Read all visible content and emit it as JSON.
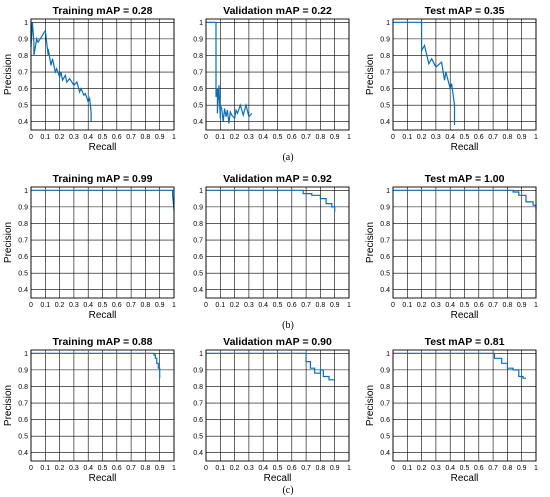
{
  "figure": {
    "row_labels": [
      "(a)",
      "(b)",
      "(c)"
    ],
    "line_color": "#0c6db3"
  },
  "chart_data": [
    {
      "type": "line",
      "title": "Training mAP = 0.28",
      "xlabel": "Recall",
      "ylabel": "Precision",
      "xlim": [
        0,
        1
      ],
      "ylim": [
        0.35,
        1.02
      ],
      "grid": true,
      "x_ticks": [
        "0",
        "0.1",
        "0.2",
        "0.3",
        "0.4",
        "0.5",
        "0.6",
        "0.7",
        "0.8",
        "0.9",
        "1"
      ],
      "y_ticks": [
        "0.4",
        "0.5",
        "0.6",
        "0.7",
        "0.8",
        "0.9",
        "1"
      ],
      "series": [
        {
          "x": [
            0,
            0,
            0.01,
            0.02,
            0.02,
            0.04,
            0.05,
            0.1,
            0.12,
            0.12,
            0.14,
            0.15,
            0.17,
            0.18,
            0.2,
            0.21,
            0.22,
            0.24,
            0.25,
            0.27,
            0.3,
            0.32,
            0.34,
            0.35,
            0.37,
            0.38,
            0.4,
            0.41,
            0.42,
            0.42
          ],
          "y": [
            1.0,
            0.85,
            1.0,
            0.88,
            0.8,
            0.9,
            0.88,
            0.95,
            0.8,
            0.84,
            0.74,
            0.78,
            0.7,
            0.72,
            0.67,
            0.7,
            0.65,
            0.68,
            0.64,
            0.66,
            0.62,
            0.64,
            0.58,
            0.6,
            0.56,
            0.57,
            0.52,
            0.54,
            0.46,
            0.4
          ]
        }
      ]
    },
    {
      "type": "line",
      "title": "Validation mAP = 0.22",
      "xlabel": "",
      "ylabel": "",
      "xlim": [
        0,
        1
      ],
      "ylim": [
        0.35,
        1.02
      ],
      "grid": true,
      "x_ticks": [
        "0",
        "0.1",
        "0.2",
        "0.3",
        "0.4",
        "0.5",
        "0.6",
        "0.7",
        "0.8",
        "0.9",
        "1"
      ],
      "y_ticks": [
        "0.4",
        "0.5",
        "0.6",
        "0.7",
        "0.8",
        "0.9",
        "1"
      ],
      "series": [
        {
          "x": [
            0,
            0.07,
            0.07,
            0.08,
            0.08,
            0.09,
            0.1,
            0.1,
            0.11,
            0.12,
            0.13,
            0.14,
            0.15,
            0.16,
            0.17,
            0.18,
            0.2,
            0.21,
            0.22,
            0.24,
            0.25,
            0.26,
            0.28,
            0.3,
            0.32
          ],
          "y": [
            1.0,
            1.0,
            0.55,
            0.6,
            0.45,
            0.62,
            0.42,
            0.5,
            0.48,
            0.4,
            0.48,
            0.43,
            0.47,
            0.39,
            0.46,
            0.44,
            0.42,
            0.47,
            0.45,
            0.5,
            0.47,
            0.44,
            0.5,
            0.43,
            0.45
          ]
        }
      ]
    },
    {
      "type": "line",
      "title": "Test mAP = 0.35",
      "xlabel": "Recall",
      "ylabel": "Precision",
      "xlim": [
        0,
        1
      ],
      "ylim": [
        0.35,
        1.02
      ],
      "grid": true,
      "x_ticks": [
        "0",
        "0.1",
        "0.2",
        "0.3",
        "0.4",
        "0.5",
        "0.6",
        "0.7",
        "0.8",
        "0.9",
        "1"
      ],
      "y_ticks": [
        "0.4",
        "0.5",
        "0.6",
        "0.7",
        "0.8",
        "0.9",
        "1"
      ],
      "series": [
        {
          "x": [
            0,
            0.2,
            0.2,
            0.22,
            0.25,
            0.27,
            0.3,
            0.34,
            0.36,
            0.37,
            0.4,
            0.41,
            0.43,
            0.43
          ],
          "y": [
            1.0,
            1.0,
            0.83,
            0.86,
            0.75,
            0.78,
            0.73,
            0.76,
            0.65,
            0.7,
            0.6,
            0.63,
            0.5,
            0.38
          ]
        }
      ]
    },
    {
      "type": "line",
      "title": "Training mAP = 0.99",
      "xlabel": "Recall",
      "ylabel": "Precision",
      "xlim": [
        0,
        1
      ],
      "ylim": [
        0.35,
        1.02
      ],
      "grid": true,
      "x_ticks": [
        "0",
        "0.1",
        "0.2",
        "0.3",
        "0.4",
        "0.5",
        "0.6",
        "0.7",
        "0.8",
        "0.9",
        "1"
      ],
      "y_ticks": [
        "0.4",
        "0.5",
        "0.6",
        "0.7",
        "0.8",
        "0.9",
        "1"
      ],
      "series": [
        {
          "x": [
            0,
            0.99,
            0.99,
            1.0
          ],
          "y": [
            1.0,
            1.0,
            0.97,
            0.88
          ]
        }
      ]
    },
    {
      "type": "line",
      "title": "Validation mAP = 0.92",
      "xlabel": "",
      "ylabel": "",
      "xlim": [
        0,
        1
      ],
      "ylim": [
        0.35,
        1.02
      ],
      "grid": true,
      "x_ticks": [
        "0",
        "0.1",
        "0.2",
        "0.3",
        "0.4",
        "0.5",
        "0.6",
        "0.7",
        "0.8",
        "0.9",
        "1"
      ],
      "y_ticks": [
        "0.4",
        "0.5",
        "0.6",
        "0.7",
        "0.8",
        "0.9",
        "1"
      ],
      "series": [
        {
          "x": [
            0,
            0.68,
            0.68,
            0.74,
            0.74,
            0.8,
            0.8,
            0.84,
            0.84,
            0.88,
            0.88,
            0.9,
            0.9
          ],
          "y": [
            1.0,
            1.0,
            0.98,
            0.98,
            0.97,
            0.97,
            0.95,
            0.95,
            0.92,
            0.92,
            0.9,
            0.9,
            0.87
          ]
        }
      ]
    },
    {
      "type": "line",
      "title": "Test mAP = 1.00",
      "xlabel": "Recall",
      "ylabel": "Precision",
      "xlim": [
        0,
        1
      ],
      "ylim": [
        0.35,
        1.02
      ],
      "grid": true,
      "x_ticks": [
        "0",
        "0.1",
        "0.2",
        "0.3",
        "0.4",
        "0.5",
        "0.6",
        "0.7",
        "0.8",
        "0.9",
        "1"
      ],
      "y_ticks": [
        "0.4",
        "0.5",
        "0.6",
        "0.7",
        "0.8",
        "0.9",
        "1"
      ],
      "series": [
        {
          "x": [
            0,
            0.84,
            0.84,
            0.88,
            0.88,
            0.93,
            0.93,
            0.98,
            0.98,
            1.0,
            1.0
          ],
          "y": [
            1.0,
            1.0,
            0.99,
            0.99,
            0.97,
            0.97,
            0.93,
            0.93,
            0.91,
            0.91,
            0.88
          ]
        }
      ]
    },
    {
      "type": "line",
      "title": "Training mAP = 0.88",
      "xlabel": "Recall",
      "ylabel": "Precision",
      "xlim": [
        0,
        1
      ],
      "ylim": [
        0.35,
        1.02
      ],
      "grid": true,
      "x_ticks": [
        "0",
        "0.1",
        "0.2",
        "0.3",
        "0.4",
        "0.5",
        "0.6",
        "0.7",
        "0.8",
        "0.9",
        "1"
      ],
      "y_ticks": [
        "0.4",
        "0.5",
        "0.6",
        "0.7",
        "0.8",
        "0.9",
        "1"
      ],
      "series": [
        {
          "x": [
            0,
            0.86,
            0.86,
            0.87,
            0.87,
            0.88,
            0.88,
            0.89,
            0.89,
            0.9,
            0.9
          ],
          "y": [
            1.0,
            1.0,
            0.99,
            0.99,
            0.97,
            0.97,
            0.94,
            0.94,
            0.91,
            0.91,
            0.85
          ]
        }
      ]
    },
    {
      "type": "line",
      "title": "Validation mAP = 0.90",
      "xlabel": "Recall",
      "ylabel": "",
      "xlim": [
        0,
        1
      ],
      "ylim": [
        0.35,
        1.02
      ],
      "grid": true,
      "x_ticks": [
        "0",
        "0.1",
        "0.2",
        "0.3",
        "0.4",
        "0.5",
        "0.6",
        "0.7",
        "0.8",
        "0.9",
        "1"
      ],
      "y_ticks": [
        "0.4",
        "0.5",
        "0.6",
        "0.7",
        "0.8",
        "0.9",
        "1"
      ],
      "series": [
        {
          "x": [
            0,
            0.7,
            0.7,
            0.73,
            0.73,
            0.76,
            0.76,
            0.8,
            0.8,
            0.82,
            0.82,
            0.86,
            0.86,
            0.9
          ],
          "y": [
            1.0,
            1.0,
            0.95,
            0.95,
            0.91,
            0.91,
            0.88,
            0.88,
            0.9,
            0.9,
            0.86,
            0.86,
            0.84,
            0.84
          ]
        }
      ]
    },
    {
      "type": "line",
      "title": "Test mAP = 0.81",
      "xlabel": "Recall",
      "ylabel": "Precision",
      "xlim": [
        0,
        1
      ],
      "ylim": [
        0.35,
        1.02
      ],
      "grid": true,
      "x_ticks": [
        "0",
        "0.1",
        "0.2",
        "0.3",
        "0.4",
        "0.5",
        "0.6",
        "0.7",
        "0.8",
        "0.9",
        "1"
      ],
      "y_ticks": [
        "0.4",
        "0.5",
        "0.6",
        "0.7",
        "0.8",
        "0.9",
        "1"
      ],
      "series": [
        {
          "x": [
            0,
            0.71,
            0.71,
            0.76,
            0.76,
            0.8,
            0.8,
            0.84,
            0.84,
            0.88,
            0.88,
            0.91,
            0.91,
            0.93
          ],
          "y": [
            1.0,
            1.0,
            0.97,
            0.97,
            0.94,
            0.94,
            0.91,
            0.91,
            0.9,
            0.9,
            0.86,
            0.86,
            0.85,
            0.85
          ]
        }
      ]
    }
  ]
}
